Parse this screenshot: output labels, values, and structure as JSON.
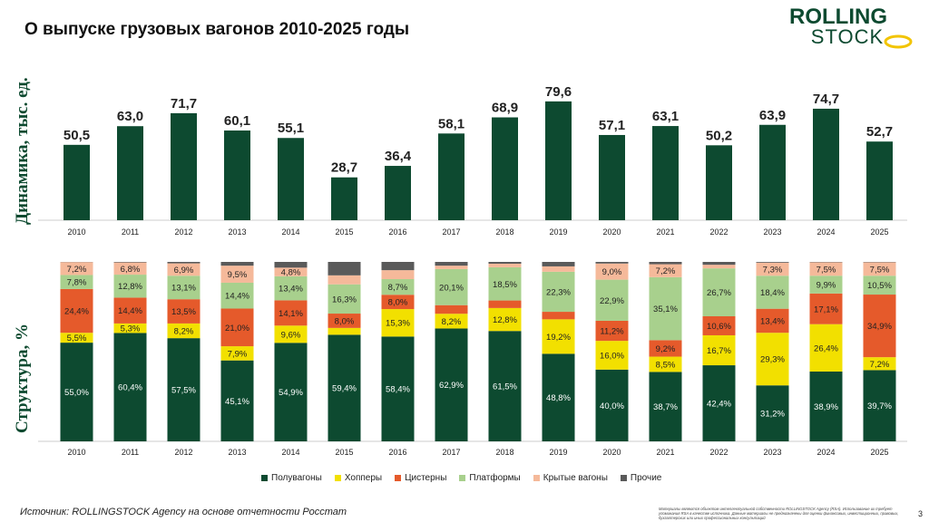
{
  "header": {
    "title": "О выпуске грузовых вагонов 2010-2025 годы"
  },
  "logo": {
    "line1": "ROLLING",
    "line2": "STOCK",
    "color": "#0d4a30",
    "accent": "#f2c400"
  },
  "footer": {
    "source": "Источник: ROLLINGSTOCK Agency на основе отчетности Росстат",
    "disclaimer": "Материалы являются объектом интеллектуальной собственности ROLLINGSTOCK Agency (RSA). Использование их требует упоминания RSA в качестве источника. Данные материалы не предназначены для оценки финансовых, инвестиционных, правовых, бухгалтерских или иных профессиональных консультаций",
    "page": "3"
  },
  "chart_data": [
    {
      "type": "bar",
      "ylabel": "Динамика, тыс. ед.",
      "categories": [
        "2010",
        "2011",
        "2012",
        "2013",
        "2014",
        "2015",
        "2016",
        "2017",
        "2018",
        "2019",
        "2020",
        "2021",
        "2022",
        "2023",
        "2024",
        "2025"
      ],
      "values": [
        50.5,
        63.0,
        71.7,
        60.1,
        55.1,
        28.7,
        36.4,
        58.1,
        68.9,
        79.6,
        57.1,
        63.1,
        50.2,
        63.9,
        74.7,
        52.7
      ],
      "value_labels": [
        "50,5",
        "63,0",
        "71,7",
        "60,1",
        "55,1",
        "28,7",
        "36,4",
        "58,1",
        "68,9",
        "79,6",
        "57,1",
        "63,1",
        "50,2",
        "63,9",
        "74,7",
        "52,7"
      ],
      "ylim": [
        0,
        85
      ],
      "color": "#0d4a30"
    },
    {
      "type": "bar",
      "stacked": true,
      "ylabel": "Структура, %",
      "categories": [
        "2010",
        "2011",
        "2012",
        "2013",
        "2014",
        "2015",
        "2016",
        "2017",
        "2018",
        "2019",
        "2020",
        "2021",
        "2022",
        "2023",
        "2024",
        "2025"
      ],
      "ylim": [
        0,
        100
      ],
      "series": [
        {
          "name": "Полувагоны",
          "color": "#0d4a30",
          "text_color": "#ffffff",
          "values": [
            55.0,
            60.4,
            57.5,
            45.1,
            54.9,
            59.4,
            58.4,
            62.9,
            61.5,
            48.8,
            40.0,
            38.7,
            42.4,
            31.2,
            38.9,
            39.7
          ],
          "labels": [
            "55,0%",
            "60,4%",
            "57,5%",
            "45,1%",
            "54,9%",
            "59,4%",
            "58,4%",
            "62,9%",
            "61,5%",
            "48,8%",
            "40,0%",
            "38,7%",
            "42,4%",
            "31,2%",
            "38,9%",
            "39,7%"
          ]
        },
        {
          "name": "Хопперы",
          "color": "#f2e000",
          "text_color": "#222222",
          "values": [
            5.5,
            5.3,
            8.2,
            7.9,
            9.6,
            3.8,
            15.3,
            8.2,
            12.8,
            19.2,
            16.0,
            8.5,
            16.7,
            29.3,
            26.4,
            7.2
          ],
          "labels": [
            "5,5%",
            "5,3%",
            "8,2%",
            "7,9%",
            "9,6%",
            "",
            "15,3%",
            "8,2%",
            "12,8%",
            "19,2%",
            "16,0%",
            "8,5%",
            "16,7%",
            "29,3%",
            "26,4%",
            "7,2%"
          ]
        },
        {
          "name": "Цистерны",
          "color": "#e55a2b",
          "text_color": "#222222",
          "values": [
            24.4,
            14.4,
            13.5,
            21.0,
            14.1,
            8.0,
            8.0,
            4.8,
            4.2,
            4.2,
            11.2,
            9.2,
            10.6,
            13.4,
            17.1,
            34.9
          ],
          "labels": [
            "24,4%",
            "14,4%",
            "13,5%",
            "21,0%",
            "14,1%",
            "8,0%",
            "8,0%",
            "",
            "",
            "",
            "11,2%",
            "9,2%",
            "10,6%",
            "13,4%",
            "17,1%",
            "34,9%"
          ]
        },
        {
          "name": "Платформы",
          "color": "#a8d08d",
          "text_color": "#222222",
          "values": [
            7.8,
            12.8,
            13.1,
            14.4,
            13.4,
            16.3,
            8.7,
            20.1,
            18.5,
            22.3,
            22.9,
            35.1,
            26.7,
            18.4,
            9.9,
            10.5
          ],
          "labels": [
            "7,8%",
            "12,8%",
            "13,1%",
            "14,4%",
            "13,4%",
            "16,3%",
            "8,7%",
            "20,1%",
            "18,5%",
            "22,3%",
            "22,9%",
            "35,1%",
            "26,7%",
            "18,4%",
            "9,9%",
            "10,5%"
          ]
        },
        {
          "name": "Крытые вагоны",
          "color": "#f5b99a",
          "text_color": "#222222",
          "values": [
            7.2,
            6.8,
            6.9,
            9.5,
            4.8,
            5.0,
            5.0,
            1.9,
            2.0,
            3.0,
            9.0,
            7.2,
            2.0,
            7.3,
            7.5,
            7.5
          ],
          "labels": [
            "7,2%",
            "6,8%",
            "6,9%",
            "9,5%",
            "4,8%",
            "",
            "",
            "",
            "",
            "",
            "9,0%",
            "7,2%",
            "",
            "7,3%",
            "7,5%",
            "7,5%"
          ]
        },
        {
          "name": "Прочие",
          "color": "#5a5a5a",
          "text_color": "#ffffff",
          "values": [
            0.1,
            0.3,
            0.8,
            2.1,
            3.2,
            7.5,
            4.6,
            2.1,
            1.0,
            2.5,
            0.9,
            1.3,
            1.6,
            0.4,
            0.2,
            0.2
          ],
          "labels": [
            "",
            "",
            "",
            "",
            "",
            "",
            "",
            "",
            "",
            "",
            "",
            "",
            "",
            "",
            "",
            ""
          ]
        }
      ]
    }
  ]
}
